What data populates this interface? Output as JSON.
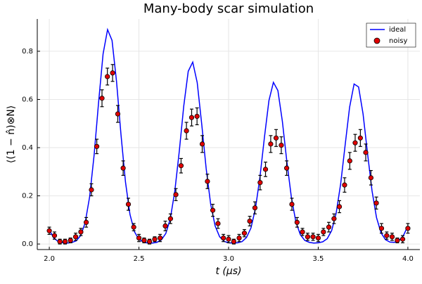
{
  "chart_data": {
    "type": "line",
    "title": "Many-body scar simulation",
    "xlabel": "t (μs)",
    "ylabel": "⟨(1 − n̂)⊗N⟩",
    "xlim": [
      1.933,
      4.067
    ],
    "ylim": [
      -0.023,
      0.934
    ],
    "xticks": [
      {
        "value": 2,
        "label": "2.0"
      },
      2.5,
      {
        "value": 3,
        "label": "3.0"
      },
      3.5,
      {
        "value": 4,
        "label": "4.0"
      }
    ],
    "yticks": [
      {
        "value": 0,
        "label": "0.0"
      },
      0.2,
      0.4,
      0.6,
      0.8
    ],
    "grid": true,
    "legend": "top-right",
    "series": [
      {
        "name": "ideal",
        "type": "line",
        "color": "#0000ff",
        "x": [
          2.0,
          2.025,
          2.05,
          2.075,
          2.1,
          2.125,
          2.15,
          2.175,
          2.2,
          2.225,
          2.25,
          2.275,
          2.3,
          2.325,
          2.35,
          2.375,
          2.4,
          2.425,
          2.45,
          2.475,
          2.5,
          2.525,
          2.55,
          2.575,
          2.6,
          2.625,
          2.65,
          2.675,
          2.7,
          2.725,
          2.75,
          2.775,
          2.8,
          2.825,
          2.85,
          2.875,
          2.9,
          2.925,
          2.95,
          2.975,
          3.0,
          3.025,
          3.05,
          3.075,
          3.1,
          3.125,
          3.15,
          3.175,
          3.2,
          3.225,
          3.25,
          3.275,
          3.3,
          3.325,
          3.35,
          3.375,
          3.4,
          3.425,
          3.45,
          3.475,
          3.5,
          3.525,
          3.55,
          3.575,
          3.6,
          3.625,
          3.65,
          3.675,
          3.7,
          3.725,
          3.75,
          3.775,
          3.8,
          3.825,
          3.85,
          3.875,
          3.9,
          3.925,
          3.95,
          3.975,
          4.0
        ],
        "values": [
          0.058,
          0.025,
          0.01,
          0.005,
          0.004,
          0.006,
          0.013,
          0.035,
          0.088,
          0.196,
          0.369,
          0.588,
          0.789,
          0.89,
          0.845,
          0.675,
          0.453,
          0.257,
          0.123,
          0.051,
          0.019,
          0.008,
          0.004,
          0.004,
          0.007,
          0.017,
          0.044,
          0.105,
          0.219,
          0.385,
          0.573,
          0.717,
          0.755,
          0.67,
          0.499,
          0.313,
          0.166,
          0.075,
          0.03,
          0.011,
          0.005,
          0.004,
          0.005,
          0.01,
          0.027,
          0.067,
          0.148,
          0.278,
          0.443,
          0.595,
          0.671,
          0.637,
          0.509,
          0.342,
          0.195,
          0.093,
          0.039,
          0.015,
          0.007,
          0.004,
          0.005,
          0.009,
          0.022,
          0.056,
          0.128,
          0.249,
          0.41,
          0.568,
          0.664,
          0.652,
          0.54,
          0.376,
          0.221,
          0.11,
          0.047,
          0.018,
          0.008,
          0.007,
          0.014,
          0.035,
          0.075
        ]
      },
      {
        "name": "noisy",
        "type": "scatter",
        "color": "#e00000",
        "x": [
          2.0,
          2.029,
          2.059,
          2.088,
          2.118,
          2.147,
          2.176,
          2.206,
          2.235,
          2.265,
          2.294,
          2.324,
          2.353,
          2.382,
          2.412,
          2.441,
          2.471,
          2.5,
          2.529,
          2.559,
          2.588,
          2.618,
          2.647,
          2.676,
          2.706,
          2.735,
          2.765,
          2.794,
          2.824,
          2.853,
          2.882,
          2.912,
          2.941,
          2.971,
          3.0,
          3.029,
          3.059,
          3.088,
          3.118,
          3.147,
          3.176,
          3.206,
          3.235,
          3.265,
          3.294,
          3.324,
          3.353,
          3.382,
          3.412,
          3.441,
          3.471,
          3.5,
          3.529,
          3.559,
          3.588,
          3.618,
          3.647,
          3.676,
          3.706,
          3.735,
          3.765,
          3.794,
          3.824,
          3.853,
          3.882,
          3.912,
          3.941,
          3.971,
          4.0
        ],
        "values": [
          0.055,
          0.035,
          0.01,
          0.01,
          0.015,
          0.03,
          0.05,
          0.09,
          0.225,
          0.405,
          0.605,
          0.695,
          0.71,
          0.54,
          0.315,
          0.165,
          0.07,
          0.025,
          0.015,
          0.01,
          0.02,
          0.025,
          0.075,
          0.105,
          0.205,
          0.325,
          0.47,
          0.525,
          0.53,
          0.415,
          0.26,
          0.14,
          0.085,
          0.025,
          0.02,
          0.01,
          0.025,
          0.045,
          0.095,
          0.15,
          0.255,
          0.31,
          0.415,
          0.44,
          0.41,
          0.315,
          0.165,
          0.09,
          0.05,
          0.03,
          0.03,
          0.025,
          0.05,
          0.07,
          0.105,
          0.155,
          0.245,
          0.345,
          0.42,
          0.44,
          0.38,
          0.275,
          0.17,
          0.065,
          0.035,
          0.03,
          0.015,
          0.02,
          0.065
        ],
        "errors": [
          0.015,
          0.015,
          0.01,
          0.01,
          0.01,
          0.015,
          0.015,
          0.02,
          0.025,
          0.03,
          0.035,
          0.035,
          0.035,
          0.035,
          0.03,
          0.025,
          0.015,
          0.015,
          0.01,
          0.01,
          0.01,
          0.015,
          0.02,
          0.02,
          0.025,
          0.03,
          0.035,
          0.035,
          0.035,
          0.035,
          0.03,
          0.025,
          0.02,
          0.015,
          0.015,
          0.01,
          0.015,
          0.015,
          0.02,
          0.025,
          0.03,
          0.03,
          0.035,
          0.035,
          0.035,
          0.03,
          0.025,
          0.02,
          0.015,
          0.015,
          0.015,
          0.015,
          0.015,
          0.02,
          0.02,
          0.025,
          0.03,
          0.035,
          0.035,
          0.035,
          0.035,
          0.03,
          0.025,
          0.02,
          0.015,
          0.015,
          0.01,
          0.015,
          0.02
        ]
      }
    ]
  }
}
